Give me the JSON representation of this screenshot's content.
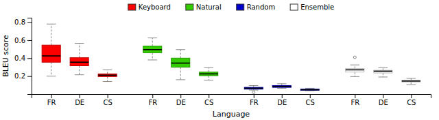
{
  "chart_data": {
    "type": "box",
    "xlabel": "Language",
    "ylabel": "BLEU score",
    "ylim": [
      0.0,
      0.85
    ],
    "yticks": [
      0.2,
      0.4,
      0.6,
      0.8
    ],
    "legend": "top",
    "categories": [
      "FR",
      "DE",
      "CS"
    ],
    "series": [
      {
        "name": "Keyboard",
        "color": "#FF0000",
        "values": [
          {
            "whislo": 0.2,
            "q1": 0.355,
            "med": 0.425,
            "q3": 0.545,
            "whishi": 0.78,
            "fliers": []
          },
          {
            "whislo": 0.215,
            "q1": 0.315,
            "med": 0.355,
            "q3": 0.405,
            "whishi": 0.565,
            "fliers": []
          },
          {
            "whislo": 0.14,
            "q1": 0.195,
            "med": 0.21,
            "q3": 0.225,
            "whishi": 0.27,
            "fliers": []
          }
        ]
      },
      {
        "name": "Natural",
        "color": "#33CC00",
        "values": [
          {
            "whislo": 0.38,
            "q1": 0.46,
            "med": 0.495,
            "q3": 0.535,
            "whishi": 0.625,
            "fliers": []
          },
          {
            "whislo": 0.16,
            "q1": 0.3,
            "med": 0.345,
            "q3": 0.4,
            "whishi": 0.495,
            "fliers": []
          },
          {
            "whislo": 0.155,
            "q1": 0.205,
            "med": 0.225,
            "q3": 0.245,
            "whishi": 0.295,
            "fliers": []
          }
        ]
      },
      {
        "name": "Random",
        "color": "#0000CC",
        "values": [
          {
            "whislo": 0.045,
            "q1": 0.055,
            "med": 0.065,
            "q3": 0.075,
            "whishi": 0.095,
            "fliers": [
              0.02
            ]
          },
          {
            "whislo": 0.065,
            "q1": 0.075,
            "med": 0.085,
            "q3": 0.095,
            "whishi": 0.115,
            "fliers": []
          },
          {
            "whislo": 0.038,
            "q1": 0.043,
            "med": 0.048,
            "q3": 0.055,
            "whishi": 0.065,
            "fliers": []
          }
        ]
      },
      {
        "name": "Ensemble",
        "color": "#FFFFFF",
        "values": [
          {
            "whislo": 0.195,
            "q1": 0.245,
            "med": 0.27,
            "q3": 0.285,
            "whishi": 0.325,
            "fliers": [
              0.41
            ]
          },
          {
            "whislo": 0.19,
            "q1": 0.235,
            "med": 0.255,
            "q3": 0.265,
            "whishi": 0.295,
            "fliers": []
          },
          {
            "whislo": 0.105,
            "q1": 0.135,
            "med": 0.145,
            "q3": 0.155,
            "whishi": 0.175,
            "fliers": []
          }
        ]
      }
    ]
  }
}
